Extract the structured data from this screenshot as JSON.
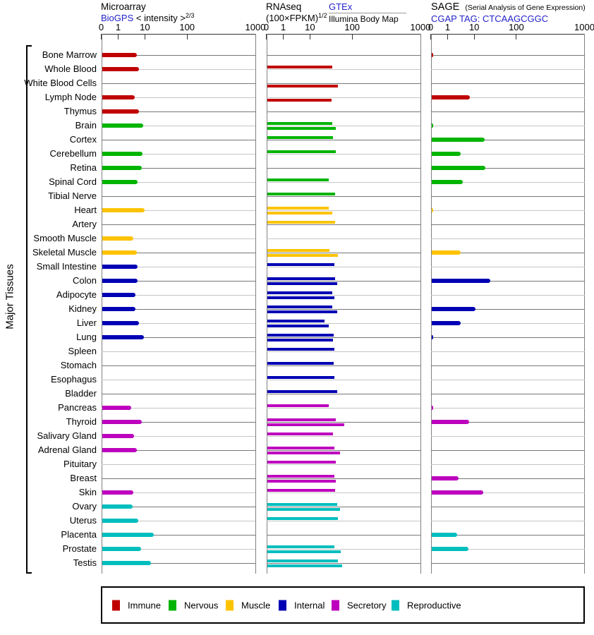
{
  "page": {
    "left_axis_label": "Major Tissues"
  },
  "colors": {
    "link": "#2323cb",
    "Immune": "#c00000",
    "Nervous": "#00b400",
    "Muscle": "#fdc300",
    "Internal": "#0000b4",
    "Secretory": "#bd00bd",
    "Reproductive": "#00bebe"
  },
  "panels": {
    "microarray": {
      "title": "Microarray",
      "source_link": "BioGPS",
      "measure": " < intensity >",
      "measure_sup": "2/3"
    },
    "rnaseq": {
      "title": "RNAseq",
      "measure": "(100×FPKM)",
      "measure_sup": "1/2",
      "source_link": "GTEx",
      "source2": "Illumina Body Map"
    },
    "sage": {
      "title": "SAGE",
      "title_note": "(Serial Analysis of Gene Expression)",
      "source_link": "CGAP TAG: CTCAAGCGGC"
    }
  },
  "axis": {
    "ticks": [
      "0",
      "1",
      "10",
      "100",
      "1000"
    ]
  },
  "legend": {
    "items": [
      {
        "label": "Immune"
      },
      {
        "label": "Nervous"
      },
      {
        "label": "Muscle"
      },
      {
        "label": "Internal"
      },
      {
        "label": "Secretory"
      },
      {
        "label": "Reproductive"
      }
    ]
  },
  "chart_data": {
    "type": "bar",
    "orientation": "horizontal",
    "x_scale": "log (0 pinned at origin)",
    "x_ticks": [
      0,
      1,
      10,
      100,
      1000
    ],
    "xlim": [
      0,
      1000
    ],
    "panel_titles": [
      "Microarray BioGPS < intensity >^(2/3)",
      "RNAseq (100×FPKM)^(1/2) GTEx / Illumina Body Map",
      "SAGE CGAP TAG: CTCAAGCGGC"
    ],
    "ylabel": "Major Tissues",
    "legend_entries": [
      "Immune",
      "Nervous",
      "Muscle",
      "Internal",
      "Secretory",
      "Reproductive"
    ],
    "rows": [
      {
        "tissue": "Bone Marrow",
        "category": "Immune",
        "microarray": 4.7,
        "rnaseq_gtex": null,
        "rnaseq_illumina": null,
        "sage": 0.1
      },
      {
        "tissue": "Whole Blood",
        "category": "Immune",
        "microarray": 5.5,
        "rnaseq_gtex": 33,
        "rnaseq_illumina": null,
        "sage": null
      },
      {
        "tissue": "White Blood Cells",
        "category": "Immune",
        "microarray": null,
        "rnaseq_gtex": null,
        "rnaseq_illumina": 44,
        "sage": null
      },
      {
        "tissue": "Lymph Node",
        "category": "Immune",
        "microarray": 4.0,
        "rnaseq_gtex": null,
        "rnaseq_illumina": 31,
        "sage": 6.6
      },
      {
        "tissue": "Thymus",
        "category": "Immune",
        "microarray": 5.7,
        "rnaseq_gtex": null,
        "rnaseq_illumina": null,
        "sage": null
      },
      {
        "tissue": "Brain",
        "category": "Nervous",
        "microarray": 8.0,
        "rnaseq_gtex": 32,
        "rnaseq_illumina": 39,
        "sage": 0.1
      },
      {
        "tissue": "Cortex",
        "category": "Nervous",
        "microarray": null,
        "rnaseq_gtex": 34,
        "rnaseq_illumina": null,
        "sage": 17
      },
      {
        "tissue": "Cerebellum",
        "category": "Nervous",
        "microarray": 7.7,
        "rnaseq_gtex": 40,
        "rnaseq_illumina": null,
        "sage": 3.0
      },
      {
        "tissue": "Retina",
        "category": "Nervous",
        "microarray": 7.3,
        "rnaseq_gtex": null,
        "rnaseq_illumina": null,
        "sage": 18
      },
      {
        "tissue": "Spinal Cord",
        "category": "Nervous",
        "microarray": 4.9,
        "rnaseq_gtex": 27,
        "rnaseq_illumina": null,
        "sage": 3.5
      },
      {
        "tissue": "Tibial Nerve",
        "category": "Nervous",
        "microarray": null,
        "rnaseq_gtex": 38,
        "rnaseq_illumina": null,
        "sage": null
      },
      {
        "tissue": "Heart",
        "category": "Muscle",
        "microarray": 9.3,
        "rnaseq_gtex": 27,
        "rnaseq_illumina": 32,
        "sage": 0.1
      },
      {
        "tissue": "Artery",
        "category": "Muscle",
        "microarray": null,
        "rnaseq_gtex": 38,
        "rnaseq_illumina": null,
        "sage": null
      },
      {
        "tissue": "Smooth Muscle",
        "category": "Muscle",
        "microarray": 3.5,
        "rnaseq_gtex": null,
        "rnaseq_illumina": null,
        "sage": null
      },
      {
        "tissue": "Skeletal Muscle",
        "category": "Muscle",
        "microarray": 4.8,
        "rnaseq_gtex": 28,
        "rnaseq_illumina": 45,
        "sage": 3.0
      },
      {
        "tissue": "Small Intestine",
        "category": "Internal",
        "microarray": 4.9,
        "rnaseq_gtex": 37,
        "rnaseq_illumina": null,
        "sage": null
      },
      {
        "tissue": "Colon",
        "category": "Internal",
        "microarray": 5.1,
        "rnaseq_gtex": 38,
        "rnaseq_illumina": 42,
        "sage": 23
      },
      {
        "tissue": "Adipocyte",
        "category": "Internal",
        "microarray": 4.3,
        "rnaseq_gtex": 33,
        "rnaseq_illumina": 37,
        "sage": null
      },
      {
        "tissue": "Kidney",
        "category": "Internal",
        "microarray": 4.1,
        "rnaseq_gtex": 32,
        "rnaseq_illumina": 43,
        "sage": 10.5
      },
      {
        "tissue": "Liver",
        "category": "Internal",
        "microarray": 5.8,
        "rnaseq_gtex": 21,
        "rnaseq_illumina": 27,
        "sage": 3.0
      },
      {
        "tissue": "Lung",
        "category": "Internal",
        "microarray": 8.9,
        "rnaseq_gtex": 35,
        "rnaseq_illumina": 34,
        "sage": 0.1
      },
      {
        "tissue": "Spleen",
        "category": "Internal",
        "microarray": null,
        "rnaseq_gtex": 36,
        "rnaseq_illumina": null,
        "sage": null
      },
      {
        "tissue": "Stomach",
        "category": "Internal",
        "microarray": null,
        "rnaseq_gtex": 35,
        "rnaseq_illumina": null,
        "sage": null
      },
      {
        "tissue": "Esophagus",
        "category": "Internal",
        "microarray": null,
        "rnaseq_gtex": 37,
        "rnaseq_illumina": null,
        "sage": null
      },
      {
        "tissue": "Bladder",
        "category": "Internal",
        "microarray": null,
        "rnaseq_gtex": 42,
        "rnaseq_illumina": null,
        "sage": null
      },
      {
        "tissue": "Pancreas",
        "category": "Secretory",
        "microarray": 2.9,
        "rnaseq_gtex": 27,
        "rnaseq_illumina": null,
        "sage": 0.1
      },
      {
        "tissue": "Thyroid",
        "category": "Secretory",
        "microarray": 7.2,
        "rnaseq_gtex": 39,
        "rnaseq_illumina": 62,
        "sage": 5.9
      },
      {
        "tissue": "Salivary Gland",
        "category": "Secretory",
        "microarray": 3.8,
        "rnaseq_gtex": 34,
        "rnaseq_illumina": null,
        "sage": null
      },
      {
        "tissue": "Adrenal Gland",
        "category": "Secretory",
        "microarray": 4.7,
        "rnaseq_gtex": 36,
        "rnaseq_illumina": 50,
        "sage": null
      },
      {
        "tissue": "Pituitary",
        "category": "Secretory",
        "microarray": null,
        "rnaseq_gtex": 39,
        "rnaseq_illumina": null,
        "sage": null
      },
      {
        "tissue": "Breast",
        "category": "Secretory",
        "microarray": null,
        "rnaseq_gtex": 37,
        "rnaseq_illumina": 39,
        "sage": 2.4
      },
      {
        "tissue": "Skin",
        "category": "Secretory",
        "microarray": 3.5,
        "rnaseq_gtex": 38,
        "rnaseq_illumina": null,
        "sage": 15.8
      },
      {
        "tissue": "Ovary",
        "category": "Reproductive",
        "microarray": 3.3,
        "rnaseq_gtex": 42,
        "rnaseq_illumina": 50,
        "sage": null
      },
      {
        "tissue": "Uterus",
        "category": "Reproductive",
        "microarray": 5.3,
        "rnaseq_gtex": 45,
        "rnaseq_illumina": null,
        "sage": null
      },
      {
        "tissue": "Placenta",
        "category": "Reproductive",
        "microarray": 15.6,
        "rnaseq_gtex": null,
        "rnaseq_illumina": null,
        "sage": 2.1
      },
      {
        "tissue": "Prostate",
        "category": "Reproductive",
        "microarray": 6.9,
        "rnaseq_gtex": 37,
        "rnaseq_illumina": 52,
        "sage": 5.6
      },
      {
        "tissue": "Testis",
        "category": "Reproductive",
        "microarray": 13.3,
        "rnaseq_gtex": 45,
        "rnaseq_illumina": 55,
        "sage": null
      }
    ]
  }
}
